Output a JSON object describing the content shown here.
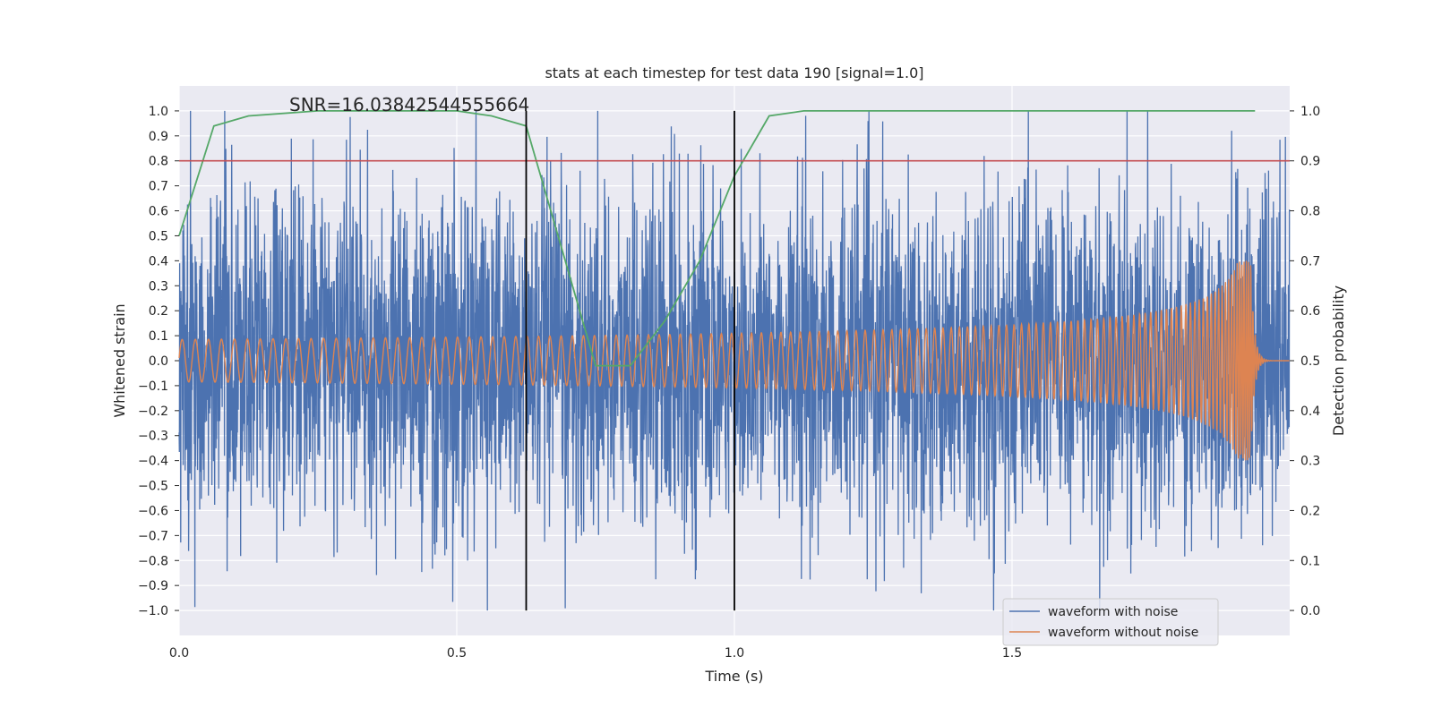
{
  "chart_data": {
    "type": "line",
    "title": "stats at each timestep for test data 190 [signal=1.0]",
    "xlabel": "Time (s)",
    "ylabel": "Whitened strain",
    "y2label": "Detection probability",
    "annotation": "SNR=16.03842544555664",
    "xlim": [
      0.0,
      2.0
    ],
    "ylim": [
      -1.1,
      1.1
    ],
    "y2lim": [
      -0.05,
      1.05
    ],
    "x_ticks": [
      0.0,
      0.5,
      1.0,
      1.5
    ],
    "x_tick_labels": [
      "0.0",
      "0.5",
      "1.0",
      "1.5"
    ],
    "y_ticks": [
      1.0,
      0.9,
      0.8,
      0.7,
      0.6,
      0.5,
      0.4,
      0.3,
      0.2,
      0.1,
      0.0,
      -0.1,
      -0.2,
      -0.3,
      -0.4,
      -0.5,
      -0.6,
      -0.7,
      -0.8,
      -0.9,
      -1.0
    ],
    "y_tick_labels": [
      "1.0",
      "0.9",
      "0.8",
      "0.7",
      "0.6",
      "0.5",
      "0.4",
      "0.3",
      "0.2",
      "0.1",
      "0.0",
      "−0.1",
      "−0.2",
      "−0.3",
      "−0.4",
      "−0.5",
      "−0.6",
      "−0.7",
      "−0.8",
      "−0.9",
      "−1.0"
    ],
    "y2_ticks": [
      1.0,
      0.9,
      0.8,
      0.7,
      0.6,
      0.5,
      0.4,
      0.3,
      0.2,
      0.1,
      0.0
    ],
    "y2_tick_labels": [
      "1.0",
      "0.9",
      "0.8",
      "0.7",
      "0.6",
      "0.5",
      "0.4",
      "0.3",
      "0.2",
      "0.1",
      "0.0"
    ],
    "legend": {
      "placement": "lower-right",
      "entries": [
        "waveform with noise",
        "waveform without noise"
      ]
    },
    "colors": {
      "noisy": "#4c72b0",
      "clean": "#dd8452",
      "probability": "#55a868",
      "threshold": "#c44e52",
      "marker": "#000000",
      "background": "#eaeaf2",
      "grid": "#ffffff"
    },
    "threshold_y2": 0.9,
    "vertical_markers_x": [
      0.625,
      1.0
    ],
    "series": [
      {
        "name": "waveform with noise",
        "axis": "left",
        "kind": "noise",
        "sample_rate": 2048,
        "x_range": [
          0.0,
          2.0
        ],
        "amplitude_std": 0.33,
        "clip": [
          -1.0,
          1.0
        ]
      },
      {
        "name": "waveform without noise",
        "axis": "left",
        "kind": "chirp",
        "sample_rate": 2048,
        "x_range": [
          0.0,
          2.0
        ],
        "merger_time": 1.93,
        "base_amplitude": 0.085,
        "peak_amplitude": 0.4,
        "base_frequency": 42,
        "peak_frequency": 250
      },
      {
        "name": "detection probability",
        "axis": "right",
        "kind": "line",
        "x": [
          0.0,
          0.0625,
          0.125,
          0.25,
          0.375,
          0.5,
          0.5625,
          0.625,
          0.6875,
          0.75,
          0.8125,
          0.875,
          0.9375,
          1.0,
          1.0625,
          1.125,
          1.25,
          1.375,
          1.5,
          1.625,
          1.75,
          1.875,
          1.9375
        ],
        "values": [
          0.75,
          0.97,
          0.99,
          1.0,
          1.0,
          1.0,
          0.99,
          0.97,
          0.73,
          0.49,
          0.49,
          0.58,
          0.7,
          0.87,
          0.99,
          1.0,
          1.0,
          1.0,
          1.0,
          1.0,
          1.0,
          1.0,
          1.0
        ]
      }
    ]
  }
}
